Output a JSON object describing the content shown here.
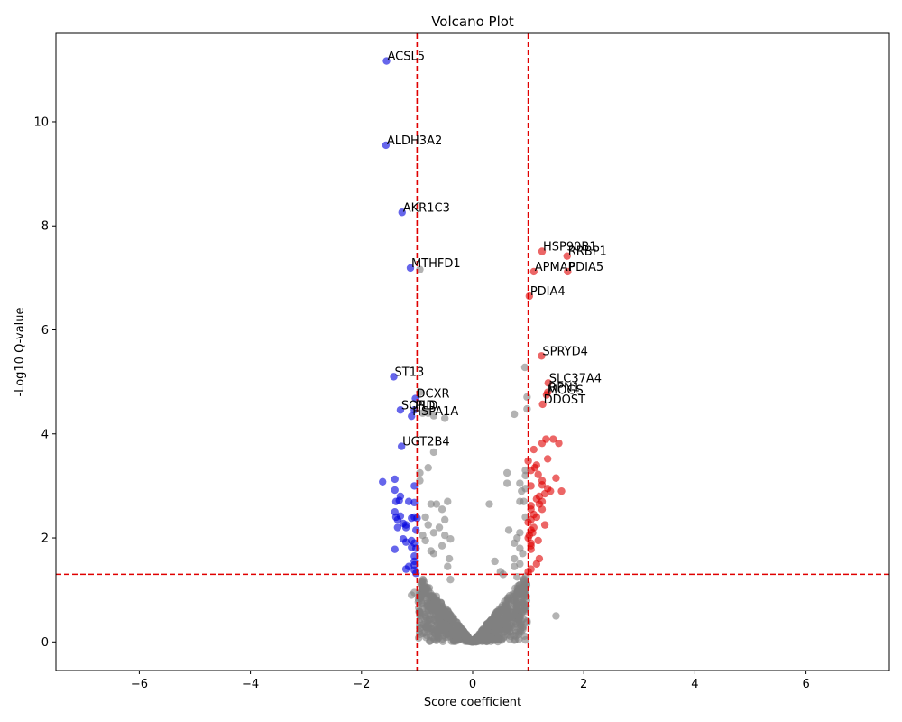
{
  "chart_data": {
    "type": "scatter",
    "title": "Volcano Plot",
    "xlabel": "Score coefficient",
    "ylabel": "-Log10 Q-value",
    "xlim": [
      -7.5,
      7.5
    ],
    "ylim": [
      -0.55,
      11.7
    ],
    "x_ticks": [
      -6,
      -4,
      -2,
      0,
      2,
      4,
      6
    ],
    "y_ticks": [
      0,
      2,
      4,
      6,
      8,
      10
    ],
    "grid": false,
    "thresholds": {
      "x": [
        -1,
        1
      ],
      "y": 1.3,
      "color": "#e00000",
      "style": "dashed"
    },
    "colors": {
      "down": "#0000dd",
      "up": "#e00000",
      "ns": "#808080"
    },
    "labeled_points": [
      {
        "gene": "ACSL5",
        "x": -1.55,
        "y": 11.17,
        "group": "down"
      },
      {
        "gene": "ALDH3A2",
        "x": -1.56,
        "y": 9.55,
        "group": "down"
      },
      {
        "gene": "AKR1C3",
        "x": -1.27,
        "y": 8.26,
        "group": "down"
      },
      {
        "gene": "MTHFD1",
        "x": -1.12,
        "y": 7.19,
        "group": "down"
      },
      {
        "gene": "ST13",
        "x": -1.42,
        "y": 5.1,
        "group": "down"
      },
      {
        "gene": "DCXR",
        "x": -1.03,
        "y": 4.68,
        "group": "down"
      },
      {
        "gene": "SORD",
        "x": -1.3,
        "y": 4.46,
        "group": "down"
      },
      {
        "gene": "PLD",
        "x": -1.05,
        "y": 4.46,
        "group": "down"
      },
      {
        "gene": "HSPA1A",
        "x": -1.1,
        "y": 4.34,
        "group": "down"
      },
      {
        "gene": "UGT2B4",
        "x": -1.28,
        "y": 3.76,
        "group": "down"
      },
      {
        "gene": "HSP90B1",
        "x": 1.25,
        "y": 7.51,
        "group": "up"
      },
      {
        "gene": "RRBP1",
        "x": 1.7,
        "y": 7.42,
        "group": "up"
      },
      {
        "gene": "APMAP",
        "x": 1.1,
        "y": 7.12,
        "group": "up"
      },
      {
        "gene": "PDIA5",
        "x": 1.71,
        "y": 7.12,
        "group": "up"
      },
      {
        "gene": "PDIA4",
        "x": 1.02,
        "y": 6.65,
        "group": "up"
      },
      {
        "gene": "SPRYD4",
        "x": 1.24,
        "y": 5.5,
        "group": "up"
      },
      {
        "gene": "SLC37A4",
        "x": 1.36,
        "y": 4.98,
        "group": "up"
      },
      {
        "gene": "RPN1",
        "x": 1.35,
        "y": 4.8,
        "group": "up"
      },
      {
        "gene": "MOGS",
        "x": 1.33,
        "y": 4.75,
        "group": "up"
      },
      {
        "gene": "DDOST",
        "x": 1.26,
        "y": 4.57,
        "group": "up"
      }
    ],
    "extra_points": {
      "down": [
        [
          -1.62,
          3.08
        ],
        [
          -1.4,
          3.13
        ],
        [
          -1.4,
          2.92
        ],
        [
          -1.3,
          2.8
        ],
        [
          -1.38,
          2.7
        ],
        [
          -1.32,
          2.72
        ],
        [
          -1.15,
          2.7
        ],
        [
          -1.05,
          2.68
        ],
        [
          -1.05,
          3.0
        ],
        [
          -1.4,
          2.5
        ],
        [
          -1.35,
          2.35
        ],
        [
          -1.38,
          2.4
        ],
        [
          -1.3,
          2.42
        ],
        [
          -1.1,
          2.38
        ],
        [
          -1.05,
          2.4
        ],
        [
          -1.0,
          2.38
        ],
        [
          -1.25,
          2.28
        ],
        [
          -1.2,
          2.25
        ],
        [
          -1.2,
          2.2
        ],
        [
          -1.35,
          2.2
        ],
        [
          -1.02,
          2.15
        ],
        [
          -1.25,
          1.98
        ],
        [
          -1.2,
          1.92
        ],
        [
          -1.1,
          1.95
        ],
        [
          -1.05,
          1.9
        ],
        [
          -1.1,
          1.82
        ],
        [
          -1.02,
          1.8
        ],
        [
          -1.4,
          1.78
        ],
        [
          -1.05,
          1.65
        ],
        [
          -1.05,
          1.55
        ],
        [
          -1.05,
          1.48
        ],
        [
          -1.15,
          1.45
        ],
        [
          -1.2,
          1.4
        ],
        [
          -1.05,
          1.38
        ],
        [
          -1.02,
          1.32
        ]
      ],
      "up": [
        [
          1.1,
          3.7
        ],
        [
          1.25,
          3.82
        ],
        [
          1.32,
          3.9
        ],
        [
          1.45,
          3.9
        ],
        [
          1.55,
          3.82
        ],
        [
          1.35,
          3.52
        ],
        [
          1.0,
          3.48
        ],
        [
          1.15,
          3.4
        ],
        [
          1.12,
          3.35
        ],
        [
          1.05,
          3.3
        ],
        [
          1.18,
          3.22
        ],
        [
          1.5,
          3.15
        ],
        [
          1.25,
          3.1
        ],
        [
          1.25,
          3.02
        ],
        [
          1.05,
          3.0
        ],
        [
          1.35,
          2.95
        ],
        [
          1.4,
          2.9
        ],
        [
          1.6,
          2.9
        ],
        [
          1.3,
          2.85
        ],
        [
          1.2,
          2.8
        ],
        [
          1.15,
          2.75
        ],
        [
          1.25,
          2.7
        ],
        [
          1.2,
          2.65
        ],
        [
          1.05,
          2.62
        ],
        [
          1.25,
          2.55
        ],
        [
          1.05,
          2.55
        ],
        [
          1.1,
          2.45
        ],
        [
          1.15,
          2.4
        ],
        [
          1.05,
          2.35
        ],
        [
          1.0,
          2.3
        ],
        [
          1.3,
          2.25
        ],
        [
          1.1,
          2.2
        ],
        [
          1.05,
          2.15
        ],
        [
          1.08,
          2.1
        ],
        [
          1.02,
          2.05
        ],
        [
          1.0,
          2.0
        ],
        [
          1.18,
          1.95
        ],
        [
          1.05,
          1.9
        ],
        [
          1.05,
          1.85
        ],
        [
          1.05,
          1.78
        ],
        [
          1.2,
          1.6
        ],
        [
          1.15,
          1.5
        ],
        [
          1.05,
          1.4
        ],
        [
          1.0,
          1.35
        ]
      ],
      "ns": [
        [
          -0.95,
          7.16
        ],
        [
          0.94,
          5.28
        ],
        [
          0.75,
          4.38
        ],
        [
          0.98,
          4.71
        ],
        [
          0.98,
          4.48
        ],
        [
          -0.95,
          4.8
        ],
        [
          -0.9,
          4.4
        ],
        [
          -0.7,
          4.35
        ],
        [
          -0.8,
          4.4
        ],
        [
          -0.5,
          4.3
        ],
        [
          -0.7,
          3.65
        ],
        [
          -0.8,
          3.35
        ],
        [
          -0.95,
          3.25
        ],
        [
          -0.95,
          3.1
        ],
        [
          0.62,
          3.25
        ],
        [
          0.62,
          3.05
        ],
        [
          0.85,
          3.05
        ],
        [
          0.95,
          3.2
        ],
        [
          0.95,
          3.3
        ],
        [
          0.95,
          2.95
        ],
        [
          0.88,
          2.9
        ],
        [
          0.3,
          2.65
        ],
        [
          0.85,
          2.7
        ],
        [
          0.92,
          2.7
        ],
        [
          -0.75,
          2.65
        ],
        [
          -0.65,
          2.65
        ],
        [
          -0.45,
          2.7
        ],
        [
          -0.55,
          2.55
        ],
        [
          -0.85,
          2.4
        ],
        [
          -0.5,
          2.35
        ],
        [
          -0.8,
          2.25
        ],
        [
          -0.6,
          2.2
        ],
        [
          -0.7,
          2.1
        ],
        [
          -0.9,
          2.05
        ],
        [
          -0.4,
          1.98
        ],
        [
          -0.5,
          2.05
        ],
        [
          -0.85,
          1.95
        ],
        [
          -0.55,
          1.85
        ],
        [
          0.65,
          2.15
        ],
        [
          0.85,
          2.1
        ],
        [
          0.8,
          2.0
        ],
        [
          0.75,
          1.9
        ],
        [
          0.85,
          1.8
        ],
        [
          0.9,
          1.7
        ],
        [
          0.4,
          1.55
        ],
        [
          0.75,
          1.6
        ],
        [
          0.95,
          2.4
        ],
        [
          -0.75,
          1.75
        ],
        [
          -0.7,
          1.7
        ],
        [
          -0.42,
          1.6
        ],
        [
          0.5,
          1.35
        ],
        [
          0.55,
          1.3
        ],
        [
          0.8,
          1.25
        ],
        [
          0.75,
          1.45
        ],
        [
          0.85,
          1.5
        ],
        [
          -0.45,
          1.45
        ],
        [
          -0.4,
          1.2
        ],
        [
          1.5,
          0.5
        ],
        [
          0.98,
          0.4
        ],
        [
          -0.95,
          0.5
        ],
        [
          -0.75,
          0.35
        ],
        [
          0.7,
          0.35
        ],
        [
          0.85,
          0.35
        ],
        [
          -1.05,
          0.95
        ],
        [
          -1.1,
          0.9
        ]
      ]
    },
    "ns_cloud": {
      "count": 900,
      "x_range": [
        -0.98,
        0.98
      ],
      "y_max": 1.3
    }
  }
}
